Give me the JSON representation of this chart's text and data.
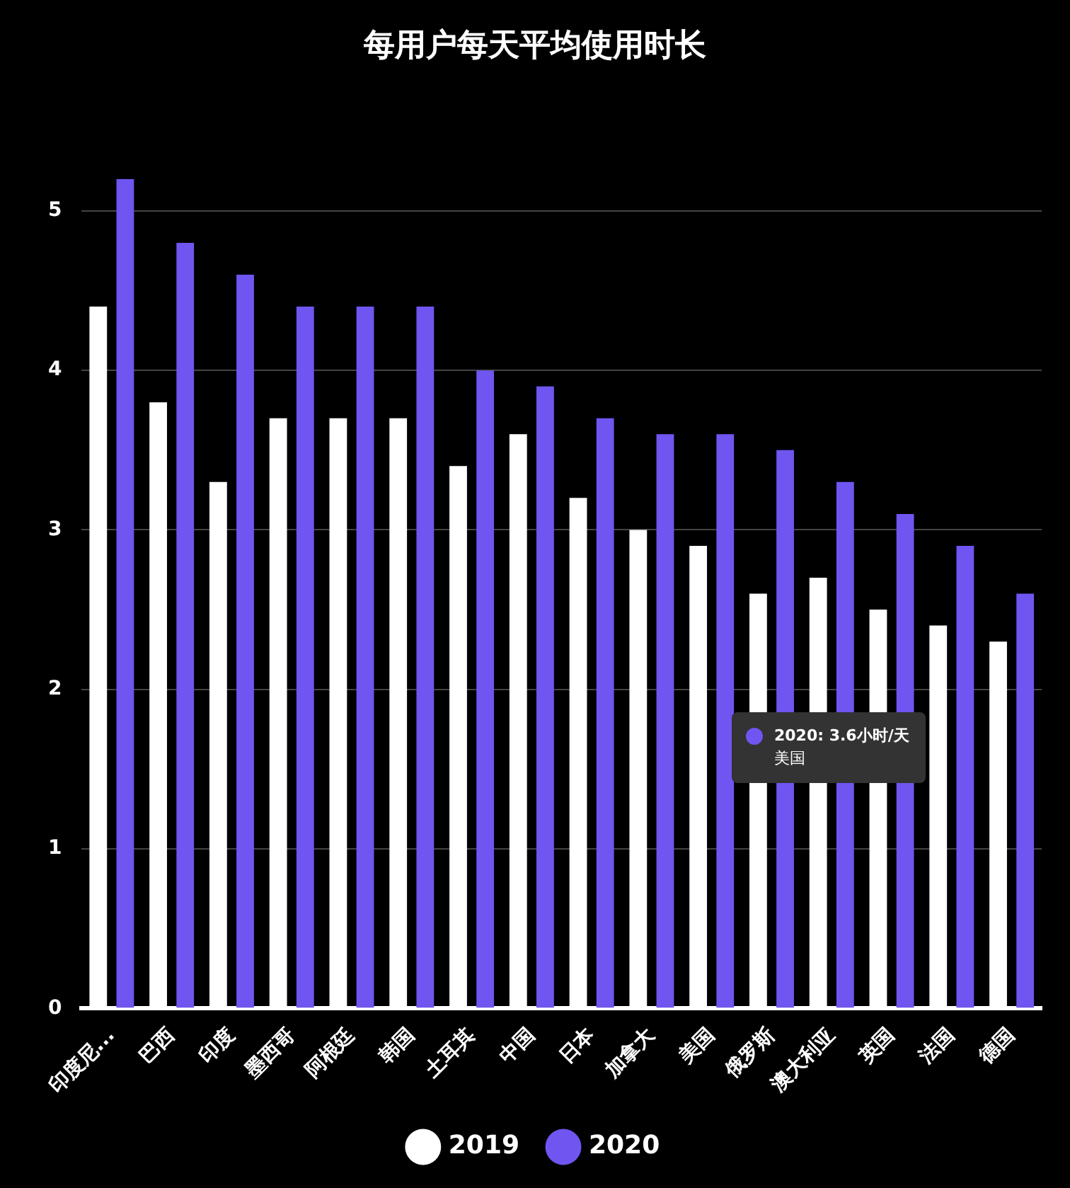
{
  "chart_data": {
    "type": "bar",
    "title": "每用户每天平均使用时长",
    "categories": [
      "印度尼...",
      "巴西",
      "印度",
      "墨西哥",
      "阿根廷",
      "韩国",
      "土耳其",
      "中国",
      "日本",
      "加拿大",
      "美国",
      "俄罗斯",
      "澳大利亚",
      "英国",
      "法国",
      "德国"
    ],
    "series": [
      {
        "name": "2019",
        "color": "#ffffff",
        "values": [
          4.4,
          3.8,
          3.3,
          3.7,
          3.7,
          3.7,
          3.4,
          3.6,
          3.2,
          3.0,
          2.9,
          2.6,
          2.7,
          2.5,
          2.4,
          2.3
        ]
      },
      {
        "name": "2020",
        "color": "#7055f0",
        "values": [
          5.2,
          4.8,
          4.6,
          4.4,
          4.4,
          4.4,
          4.0,
          3.9,
          3.7,
          3.6,
          3.6,
          3.5,
          3.3,
          3.1,
          2.9,
          2.6
        ]
      }
    ],
    "ylim": [
      0,
      5.2
    ],
    "yticks": [
      0,
      1,
      2,
      3,
      4,
      5
    ],
    "grid": "y",
    "legend": "bottom",
    "annotations": [
      "2020: 3.6小时/天",
      "美国"
    ]
  }
}
